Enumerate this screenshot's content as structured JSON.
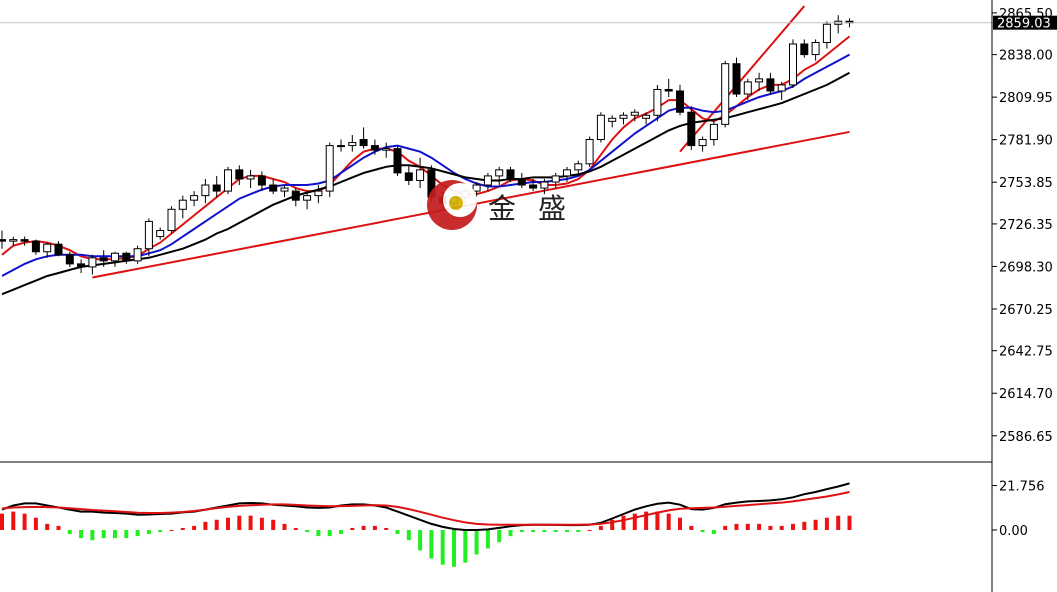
{
  "chart_data": [
    {
      "type": "candlestick",
      "ylim": [
        2572,
        2874
      ],
      "y_ticks": [
        2865.5,
        2838.0,
        2809.95,
        2781.9,
        2753.85,
        2726.35,
        2698.3,
        2670.25,
        2642.75,
        2614.7,
        2586.65
      ],
      "y_tick_labels": [
        "2865.50",
        "2838.00",
        "2809.95",
        "2781.90",
        "2753.85",
        "2726.35",
        "2698.30",
        "2670.25",
        "2642.75",
        "2614.70",
        "2586.65"
      ],
      "current_price": 2859.03,
      "current_price_label": "2859.03",
      "candles": [
        [
          2716,
          2722,
          2710,
          2715
        ],
        [
          2715,
          2718,
          2712,
          2716
        ],
        [
          2716,
          2718,
          2712,
          2715
        ],
        [
          2715,
          2716,
          2706,
          2708
        ],
        [
          2708,
          2714,
          2704,
          2713
        ],
        [
          2713,
          2715,
          2705,
          2706
        ],
        [
          2706,
          2708,
          2698,
          2700
        ],
        [
          2700,
          2703,
          2694,
          2698
        ],
        [
          2698,
          2706,
          2693,
          2704
        ],
        [
          2704,
          2709,
          2698,
          2702
        ],
        [
          2702,
          2708,
          2698,
          2707
        ],
        [
          2707,
          2708,
          2700,
          2702
        ],
        [
          2702,
          2712,
          2700,
          2710
        ],
        [
          2710,
          2730,
          2705,
          2728
        ],
        [
          2718,
          2724,
          2716,
          2722
        ],
        [
          2722,
          2738,
          2720,
          2736
        ],
        [
          2736,
          2745,
          2730,
          2742
        ],
        [
          2742,
          2748,
          2738,
          2745
        ],
        [
          2745,
          2756,
          2740,
          2752
        ],
        [
          2752,
          2758,
          2744,
          2748
        ],
        [
          2748,
          2764,
          2746,
          2762
        ],
        [
          2762,
          2765,
          2752,
          2756
        ],
        [
          2756,
          2762,
          2750,
          2758
        ],
        [
          2758,
          2761,
          2748,
          2752
        ],
        [
          2752,
          2756,
          2746,
          2748
        ],
        [
          2748,
          2752,
          2744,
          2750
        ],
        [
          2748,
          2750,
          2738,
          2742
        ],
        [
          2742,
          2748,
          2736,
          2745
        ],
        [
          2745,
          2752,
          2740,
          2748
        ],
        [
          2748,
          2780,
          2744,
          2778
        ],
        [
          2778,
          2782,
          2774,
          2778
        ],
        [
          2778,
          2785,
          2774,
          2780
        ],
        [
          2782,
          2790,
          2776,
          2778
        ],
        [
          2778,
          2782,
          2772,
          2775
        ],
        [
          2775,
          2780,
          2770,
          2776
        ],
        [
          2776,
          2778,
          2758,
          2760
        ],
        [
          2760,
          2765,
          2752,
          2755
        ],
        [
          2755,
          2770,
          2750,
          2762
        ],
        [
          2762,
          2765,
          2740,
          2744
        ],
        [
          2744,
          2748,
          2736,
          2740
        ],
        [
          2740,
          2746,
          2736,
          2744
        ],
        [
          2744,
          2750,
          2740,
          2748
        ],
        [
          2748,
          2754,
          2744,
          2752
        ],
        [
          2752,
          2760,
          2748,
          2758
        ],
        [
          2758,
          2764,
          2752,
          2762
        ],
        [
          2762,
          2764,
          2754,
          2756
        ],
        [
          2756,
          2760,
          2750,
          2752
        ],
        [
          2752,
          2756,
          2748,
          2750
        ],
        [
          2750,
          2756,
          2746,
          2754
        ],
        [
          2754,
          2760,
          2750,
          2758
        ],
        [
          2758,
          2764,
          2754,
          2762
        ],
        [
          2762,
          2768,
          2758,
          2766
        ],
        [
          2766,
          2784,
          2764,
          2782
        ],
        [
          2782,
          2800,
          2780,
          2798
        ],
        [
          2794,
          2798,
          2790,
          2796
        ],
        [
          2796,
          2800,
          2792,
          2798
        ],
        [
          2798,
          2802,
          2794,
          2800
        ],
        [
          2796,
          2800,
          2792,
          2798
        ],
        [
          2798,
          2818,
          2794,
          2815
        ],
        [
          2815,
          2822,
          2810,
          2814
        ],
        [
          2814,
          2818,
          2798,
          2800
        ],
        [
          2800,
          2804,
          2775,
          2778
        ],
        [
          2778,
          2784,
          2774,
          2782
        ],
        [
          2782,
          2794,
          2778,
          2792
        ],
        [
          2792,
          2834,
          2790,
          2832
        ],
        [
          2832,
          2836,
          2810,
          2812
        ],
        [
          2812,
          2822,
          2808,
          2820
        ],
        [
          2820,
          2826,
          2814,
          2822
        ],
        [
          2822,
          2826,
          2812,
          2814
        ],
        [
          2814,
          2820,
          2808,
          2818
        ],
        [
          2818,
          2848,
          2816,
          2845
        ],
        [
          2845,
          2848,
          2836,
          2838
        ],
        [
          2838,
          2848,
          2834,
          2846
        ],
        [
          2846,
          2860,
          2842,
          2858
        ],
        [
          2858,
          2864,
          2852,
          2860
        ],
        [
          2860,
          2862,
          2856,
          2859
        ]
      ],
      "moving_averages": [
        {
          "color": "#dd1111",
          "values": [
            2706,
            2712,
            2714,
            2715,
            2714,
            2712,
            2709,
            2705,
            2703,
            2703,
            2703,
            2704,
            2705,
            2710,
            2714,
            2720,
            2726,
            2732,
            2738,
            2744,
            2750,
            2756,
            2758,
            2758,
            2756,
            2754,
            2750,
            2748,
            2748,
            2752,
            2760,
            2768,
            2774,
            2776,
            2776,
            2774,
            2768,
            2764,
            2758,
            2752,
            2748,
            2746,
            2746,
            2748,
            2751,
            2755,
            2756,
            2755,
            2752,
            2752,
            2753,
            2756,
            2762,
            2772,
            2782,
            2790,
            2796,
            2799,
            2803,
            2808,
            2808,
            2802,
            2796,
            2794,
            2798,
            2804,
            2810,
            2815,
            2818,
            2818,
            2822,
            2828,
            2832,
            2838,
            2844,
            2850
          ]
        },
        {
          "color": "#1111cc",
          "values": [
            2692,
            2696,
            2700,
            2703,
            2705,
            2706,
            2706,
            2706,
            2705,
            2705,
            2705,
            2705,
            2705,
            2707,
            2709,
            2713,
            2718,
            2723,
            2728,
            2733,
            2738,
            2743,
            2746,
            2749,
            2751,
            2752,
            2752,
            2752,
            2753,
            2755,
            2760,
            2765,
            2770,
            2774,
            2777,
            2778,
            2776,
            2774,
            2770,
            2765,
            2760,
            2756,
            2753,
            2751,
            2751,
            2752,
            2753,
            2754,
            2754,
            2755,
            2756,
            2758,
            2762,
            2768,
            2774,
            2780,
            2786,
            2791,
            2796,
            2801,
            2803,
            2803,
            2801,
            2800,
            2801,
            2804,
            2807,
            2810,
            2812,
            2814,
            2817,
            2822,
            2826,
            2830,
            2834,
            2838
          ]
        },
        {
          "color": "#000000",
          "values": [
            2680,
            2683,
            2686,
            2689,
            2692,
            2694,
            2696,
            2698,
            2699,
            2700,
            2701,
            2702,
            2703,
            2704,
            2706,
            2708,
            2710,
            2713,
            2716,
            2720,
            2723,
            2727,
            2731,
            2735,
            2739,
            2742,
            2745,
            2747,
            2749,
            2751,
            2754,
            2757,
            2760,
            2762,
            2764,
            2765,
            2765,
            2764,
            2763,
            2761,
            2759,
            2757,
            2756,
            2755,
            2755,
            2756,
            2756,
            2757,
            2757,
            2757,
            2758,
            2759,
            2761,
            2764,
            2768,
            2772,
            2776,
            2780,
            2784,
            2788,
            2791,
            2793,
            2794,
            2795,
            2796,
            2798,
            2800,
            2802,
            2804,
            2806,
            2809,
            2812,
            2815,
            2818,
            2822,
            2826
          ]
        }
      ],
      "trendlines": [
        {
          "color": "#dd1111",
          "x": [
            8,
            75
          ],
          "y": [
            2691,
            2787
          ]
        },
        {
          "color": "#dd1111",
          "x": [
            60,
            71
          ],
          "y": [
            2774,
            2870
          ]
        }
      ]
    },
    {
      "type": "macd",
      "ylim": [
        -28.4,
        32.3
      ],
      "y_ticks": [
        21.756,
        0.0
      ],
      "y_tick_labels": [
        "21.756",
        "0.00"
      ],
      "macd_line": {
        "color": "#000000",
        "values": [
          10,
          12,
          13,
          13,
          12,
          11,
          10,
          9,
          9,
          8.5,
          8.3,
          8,
          7.5,
          7.6,
          7.8,
          8,
          8.6,
          9,
          10,
          11,
          12,
          13,
          13.2,
          13,
          12.4,
          12,
          11.6,
          11,
          10.8,
          11,
          12,
          12.5,
          12.5,
          12,
          11,
          9,
          7,
          5,
          3,
          1.5,
          0.5,
          0.0,
          0.0,
          0.3,
          1,
          1.8,
          2.4,
          2.6,
          2.6,
          2.5,
          2.4,
          2.4,
          2.6,
          3.5,
          5.6,
          7.8,
          10,
          11.6,
          12.8,
          13.4,
          12.4,
          10.2,
          10,
          10.8,
          12.6,
          13.4,
          14,
          14.2,
          14.5,
          15,
          16,
          17.5,
          18.6,
          20,
          21.3,
          22.8
        ]
      },
      "signal_line": {
        "color": "#dd1111",
        "values": [
          10.5,
          11,
          11.2,
          11.3,
          11.2,
          11,
          10.6,
          10.2,
          9.8,
          9.5,
          9.2,
          8.8,
          8.4,
          8.3,
          8.3,
          8.5,
          8.8,
          9.3,
          10,
          10.7,
          11.3,
          11.8,
          12.1,
          12.4,
          12.5,
          12.5,
          12.3,
          12,
          11.8,
          11.6,
          11.7,
          11.8,
          12,
          12.2,
          12,
          11.3,
          10.2,
          8.9,
          7.5,
          6,
          4.8,
          3.7,
          3,
          2.7,
          2.6,
          2.6,
          2.6,
          2.6,
          2.6,
          2.6,
          2.6,
          2.6,
          2.7,
          3,
          3.8,
          4.8,
          6,
          7.3,
          8.5,
          9.6,
          10.4,
          10.6,
          10.8,
          11,
          11.4,
          11.8,
          12.2,
          12.6,
          13,
          13.4,
          14,
          14.8,
          15.6,
          16.4,
          17.4,
          18.6
        ]
      },
      "histogram": [
        8,
        9,
        8,
        6,
        3,
        2,
        -2,
        -4,
        -5,
        -4,
        -4,
        -4,
        -3,
        -2,
        -1,
        0,
        1,
        2,
        4,
        5,
        6,
        7,
        7,
        6,
        5,
        3,
        1,
        -1,
        -3,
        -3,
        -2,
        1,
        2,
        2,
        1,
        -2,
        -5,
        -10,
        -14,
        -17,
        -18,
        -16,
        -12,
        -9,
        -6,
        -3,
        -1,
        -1,
        -1,
        -1,
        -1,
        -1,
        0,
        2,
        5,
        7,
        8,
        9,
        9,
        8,
        6,
        2,
        -1,
        -2,
        2,
        3,
        3,
        3,
        2,
        2,
        3,
        4,
        5,
        6,
        7,
        7
      ]
    }
  ]
}
